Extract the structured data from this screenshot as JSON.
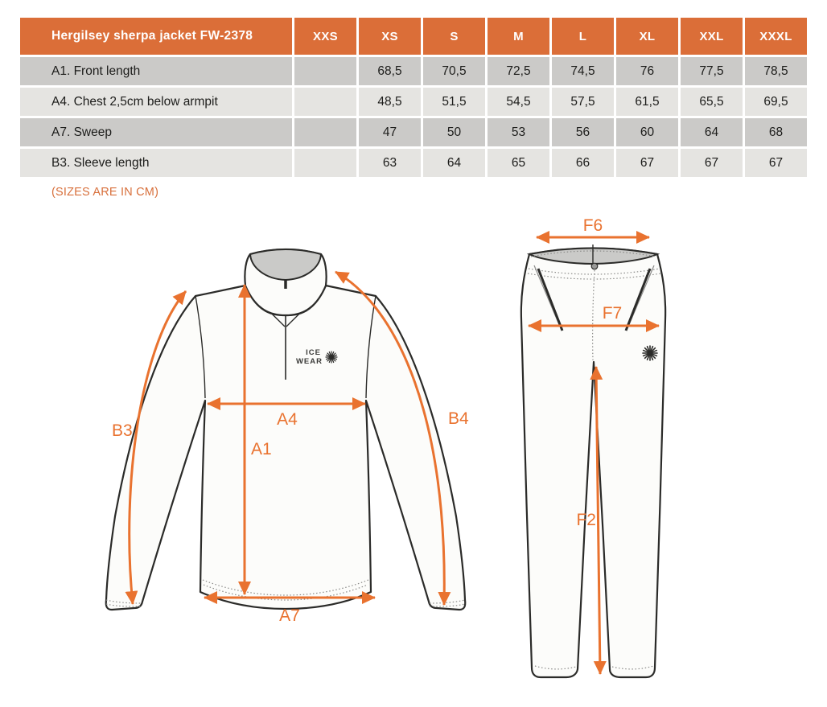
{
  "table": {
    "title": "Hergilsey sherpa jacket FW-2378",
    "sizes": [
      "XXS",
      "XS",
      "S",
      "M",
      "L",
      "XL",
      "XXL",
      "XXXL"
    ],
    "rows": [
      {
        "label": "A1. Front length",
        "values": [
          "",
          "68,5",
          "70,5",
          "72,5",
          "74,5",
          "76",
          "77,5",
          "78,5"
        ]
      },
      {
        "label": "A4. Chest 2,5cm below armpit",
        "values": [
          "",
          "48,5",
          "51,5",
          "54,5",
          "57,5",
          "61,5",
          "65,5",
          "69,5"
        ]
      },
      {
        "label": "A7. Sweep",
        "values": [
          "",
          "47",
          "50",
          "53",
          "56",
          "60",
          "64",
          "68"
        ]
      },
      {
        "label": "B3. Sleeve length",
        "values": [
          "",
          "63",
          "64",
          "65",
          "66",
          "67",
          "67",
          "67"
        ]
      }
    ]
  },
  "note": "(SIZES ARE IN CM)",
  "jacket": {
    "labels": {
      "a1": "A1",
      "a4": "A4",
      "a7": "A7",
      "b3": "B3",
      "b4": "B4"
    },
    "logo": {
      "line1": "ICE",
      "line2": "WEAR"
    }
  },
  "pants": {
    "labels": {
      "f2": "F2",
      "f6": "F6",
      "f7": "F7"
    }
  },
  "colors": {
    "header_bg": "#DB6E38",
    "annotation_orange": "#E9722F",
    "row_dark": "#CBCAC8",
    "row_light": "#E5E4E1",
    "outline": "#2B2B29"
  }
}
